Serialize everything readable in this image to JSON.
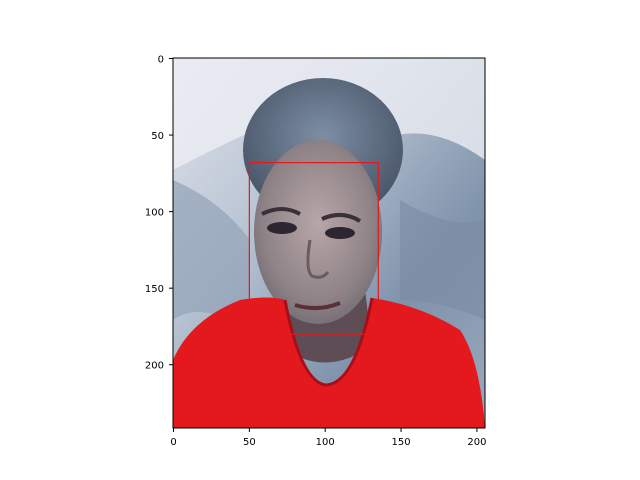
{
  "figure": {
    "image_description_hidden": false,
    "image": {
      "kind": "photo",
      "subject": "face-portrait",
      "width_units": 205,
      "height_units": 241
    },
    "annotation": {
      "type": "bounding-box",
      "color": "#e31a1c",
      "x_min": 50,
      "y_min": 68,
      "x_max": 135,
      "y_max": 180
    },
    "x_axis": {
      "ticks": [
        {
          "value": 0,
          "label": "0"
        },
        {
          "value": 50,
          "label": "50"
        },
        {
          "value": 100,
          "label": "100"
        },
        {
          "value": 150,
          "label": "150"
        },
        {
          "value": 200,
          "label": "200"
        }
      ]
    },
    "y_axis": {
      "ticks": [
        {
          "value": 0,
          "label": "0"
        },
        {
          "value": 50,
          "label": "50"
        },
        {
          "value": 100,
          "label": "100"
        },
        {
          "value": 150,
          "label": "150"
        },
        {
          "value": 200,
          "label": "200"
        }
      ]
    }
  }
}
